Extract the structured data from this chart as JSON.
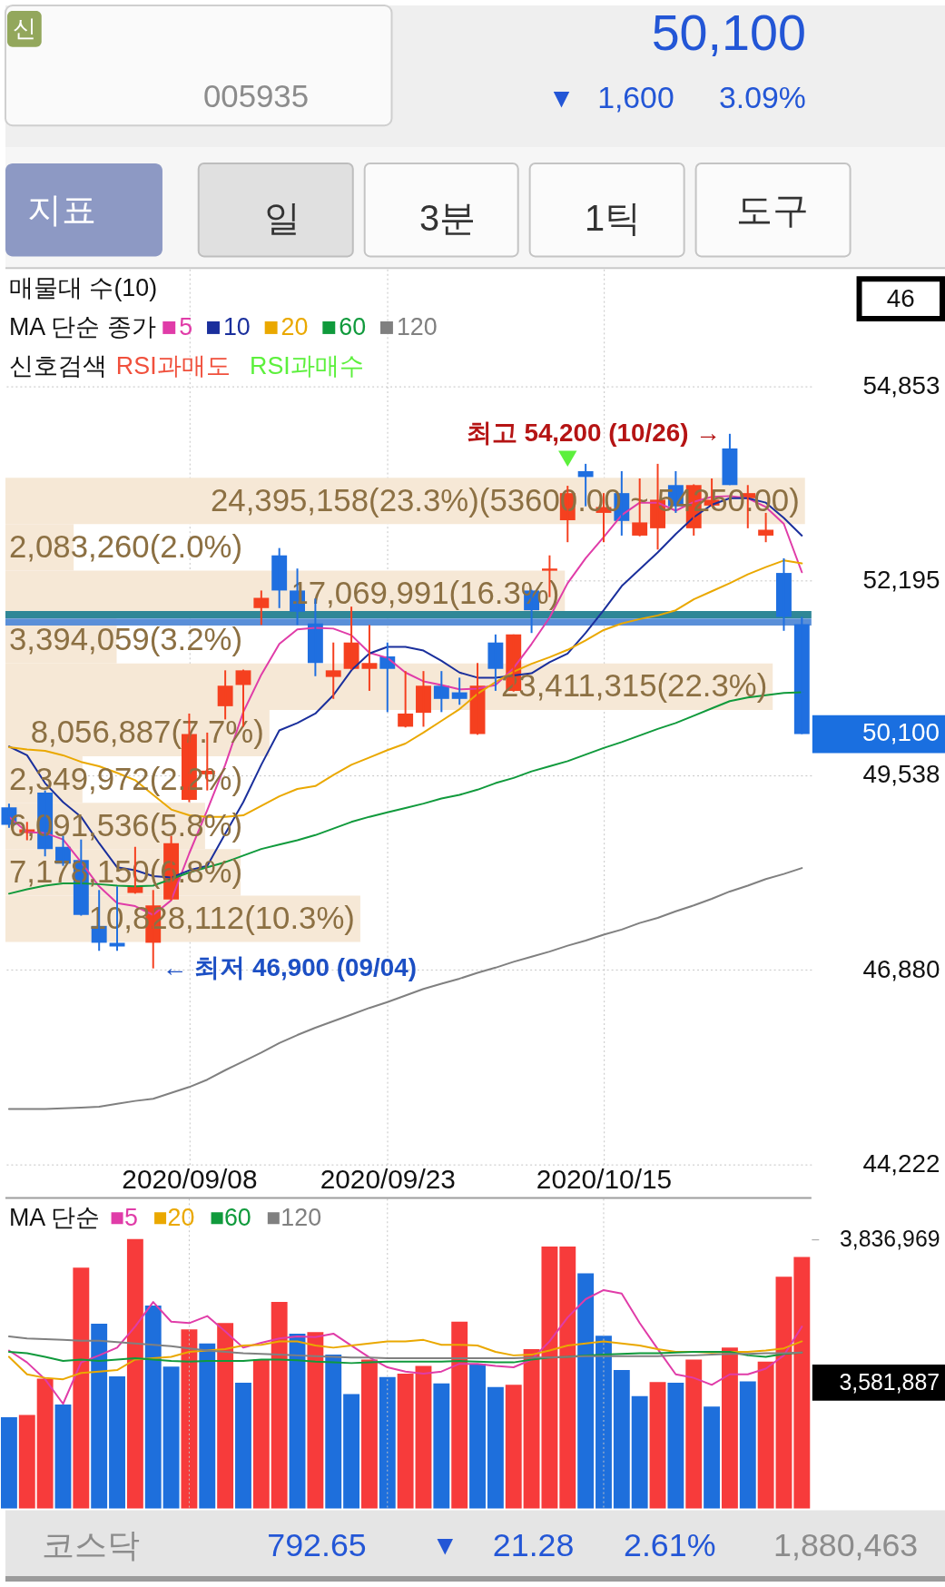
{
  "chart_data": [
    {
      "type": "other",
      "annotations": [
        "신",
        "005935",
        "50,100",
        "▼",
        "1,600",
        "3.09%",
        "지표",
        "일",
        "3분",
        "1틱",
        "도구"
      ]
    },
    {
      "type": "candlestick",
      "grid": true,
      "legend": "top left",
      "legend_title": "MA 단순 종가",
      "ylim": [
        44222,
        56450
      ],
      "yticks": [
        {
          "value": 44222,
          "label": "44,222"
        },
        {
          "value": 46880,
          "label": "46,880"
        },
        {
          "value": 49538,
          "label": "49,538"
        },
        {
          "value": 52195,
          "label": "52,195"
        },
        {
          "value": 54853,
          "label": "54,853"
        }
      ],
      "categories": [
        null,
        null,
        null,
        null,
        null,
        null,
        null,
        null,
        null,
        null,
        "2020/09/08",
        null,
        null,
        null,
        null,
        null,
        null,
        null,
        null,
        null,
        null,
        "2020/09/23",
        null,
        null,
        null,
        null,
        null,
        null,
        null,
        null,
        null,
        null,
        null,
        "2020/10/15",
        null,
        null,
        null,
        null,
        null,
        null,
        null,
        null,
        null,
        null,
        null
      ],
      "ohlc": [
        [
          49100,
          49150,
          48820,
          48860
        ],
        [
          48750,
          48900,
          48650,
          48800
        ],
        [
          49300,
          49330,
          48430,
          48530
        ],
        [
          48560,
          48710,
          48300,
          48330
        ],
        [
          48380,
          48660,
          47620,
          47630
        ],
        [
          47480,
          47970,
          47140,
          47250
        ],
        [
          47250,
          48020,
          47140,
          47200
        ],
        [
          47930,
          48560,
          47920,
          48020
        ],
        [
          47250,
          47970,
          46900,
          47760
        ],
        [
          47840,
          48710,
          47830,
          48610
        ],
        [
          49200,
          50380,
          49170,
          50100
        ],
        [
          49550,
          50120,
          49330,
          49600
        ],
        [
          50480,
          50970,
          50300,
          50760
        ],
        [
          50770,
          50980,
          50200,
          50970
        ],
        [
          51820,
          52060,
          51590,
          51960
        ],
        [
          52540,
          52640,
          51820,
          52060
        ],
        [
          52060,
          52360,
          51590,
          51770
        ],
        [
          51610,
          51950,
          50890,
          51070
        ],
        [
          50880,
          51350,
          50580,
          50970
        ],
        [
          50990,
          51840,
          50980,
          51350
        ],
        [
          50990,
          51590,
          50690,
          51070
        ],
        [
          51160,
          51350,
          50400,
          50990
        ],
        [
          50200,
          50960,
          50190,
          50380
        ],
        [
          50390,
          50960,
          50200,
          50760
        ],
        [
          50760,
          50960,
          50400,
          50580
        ],
        [
          50670,
          50870,
          50500,
          50580
        ],
        [
          50100,
          51070,
          50090,
          50760
        ],
        [
          51350,
          51460,
          50690,
          50990
        ],
        [
          50690,
          51460,
          50680,
          51460
        ],
        [
          52060,
          52070,
          51480,
          51790
        ],
        [
          52330,
          52540,
          51970,
          52360
        ],
        [
          53020,
          53490,
          52720,
          53390
        ],
        [
          53690,
          53790,
          53210,
          53610
        ],
        [
          53120,
          53390,
          52720,
          53200
        ],
        [
          53390,
          53690,
          52810,
          53010
        ],
        [
          52810,
          53590,
          52800,
          52990
        ],
        [
          52910,
          53790,
          52620,
          53300
        ],
        [
          53500,
          53690,
          53120,
          53210
        ],
        [
          52910,
          53510,
          52810,
          53500
        ],
        [
          53220,
          53590,
          53210,
          53300
        ],
        [
          54000,
          54200,
          53500,
          53500
        ],
        [
          53320,
          53500,
          52910,
          53390
        ],
        [
          52810,
          53120,
          52720,
          52890
        ],
        [
          52300,
          52500,
          51510,
          51700
        ],
        [
          51600,
          51700,
          50100,
          50100
        ]
      ],
      "colors": [
        "#1f6fe0",
        "#f5401f",
        "#1f6fe0",
        "#1f6fe0",
        "#1f6fe0",
        "#1f6fe0",
        "#1f6fe0",
        "#f5401f",
        "#f5401f",
        "#f5401f",
        "#f5401f",
        "#f5401f",
        "#f5401f",
        "#f5401f",
        "#f5401f",
        "#1f6fe0",
        "#1f6fe0",
        "#1f6fe0",
        "#f5401f",
        "#f5401f",
        "#f5401f",
        "#1f6fe0",
        "#f5401f",
        "#f5401f",
        "#1f6fe0",
        "#1f6fe0",
        "#f5401f",
        "#1f6fe0",
        "#f5401f",
        "#1f6fe0",
        "#f5401f",
        "#f5401f",
        "#1f6fe0",
        "#f5401f",
        "#1f6fe0",
        "#f5401f",
        "#f5401f",
        "#1f6fe0",
        "#f5401f",
        "#f5401f",
        "#1f6fe0",
        "#f5401f",
        "#f5401f",
        "#1f6fe0",
        "#1f6fe0"
      ],
      "series": [
        {
          "name": "5",
          "type": "line",
          "color": "#e03ca8",
          "values": [
            48970,
            48760,
            48750,
            48660,
            48350,
            48020,
            47790,
            47750,
            47630,
            47830,
            48470,
            49060,
            49680,
            50400,
            50910,
            51330,
            51530,
            51550,
            51540,
            51450,
            51210,
            51140,
            50940,
            50820,
            50770,
            50710,
            50720,
            50770,
            51000,
            51330,
            51690,
            52160,
            52500,
            52790,
            53090,
            53260,
            53260,
            53150,
            53270,
            53340,
            53350,
            53320,
            53200,
            52970,
            52310
          ]
        },
        {
          "name": "10",
          "type": "line",
          "color": "#1a2f9c",
          "values": [
            49930,
            49810,
            49430,
            49170,
            48970,
            48610,
            48280,
            48240,
            48160,
            48140,
            48240,
            48300,
            48740,
            49170,
            49680,
            50150,
            50250,
            50380,
            50630,
            50970,
            51200,
            51290,
            51290,
            51240,
            51100,
            50940,
            50870,
            50870,
            50900,
            50930,
            51080,
            51200,
            51480,
            51790,
            52120,
            52350,
            52580,
            52830,
            53060,
            53230,
            53320,
            53320,
            53260,
            53050,
            52810
          ]
        },
        {
          "name": "20",
          "type": "line",
          "color": "#eaa800",
          "values": [
            49920,
            49890,
            49870,
            49810,
            49720,
            49660,
            49570,
            49470,
            49270,
            49070,
            48990,
            48970,
            48970,
            48990,
            49120,
            49250,
            49350,
            49390,
            49540,
            49680,
            49780,
            49880,
            49970,
            50120,
            50280,
            50440,
            50650,
            50810,
            50950,
            51060,
            51150,
            51250,
            51380,
            51520,
            51610,
            51670,
            51720,
            51790,
            51940,
            52050,
            52160,
            52280,
            52380,
            52470,
            52430
          ]
        },
        {
          "name": "60",
          "type": "line",
          "color": "#109a3c",
          "values": [
            47920,
            47980,
            48030,
            48060,
            48060,
            48050,
            48030,
            48020,
            48030,
            48120,
            48210,
            48280,
            48350,
            48440,
            48530,
            48590,
            48650,
            48720,
            48810,
            48900,
            48970,
            49030,
            49090,
            49150,
            49220,
            49270,
            49340,
            49430,
            49500,
            49590,
            49660,
            49730,
            49820,
            49910,
            49990,
            50080,
            50170,
            50250,
            50350,
            50450,
            50550,
            50600,
            50630,
            50660,
            50670
          ]
        },
        {
          "name": "120",
          "type": "line",
          "color": "#808080",
          "values": [
            44980,
            44980,
            44980,
            44990,
            45000,
            45010,
            45050,
            45090,
            45120,
            45200,
            45280,
            45380,
            45510,
            45630,
            45750,
            45880,
            45990,
            46090,
            46180,
            46270,
            46360,
            46440,
            46530,
            46620,
            46690,
            46760,
            46840,
            46910,
            46990,
            47060,
            47130,
            47210,
            47280,
            47360,
            47430,
            47520,
            47590,
            47680,
            47760,
            47850,
            47950,
            48030,
            48120,
            48190,
            48270
          ]
        },
        {
          "name": "RSI과매도",
          "type": "scatter",
          "marker": "triangle",
          "color": "#f0503c",
          "values": [
            null,
            null,
            null,
            null,
            null,
            null,
            null,
            null,
            null,
            null,
            null,
            null,
            null,
            null,
            null,
            null,
            null,
            null,
            null,
            null,
            null,
            null,
            null,
            null,
            null,
            null,
            null,
            null,
            null,
            null,
            null,
            null,
            null,
            null,
            null,
            null,
            null,
            null,
            null,
            null,
            null,
            null,
            null,
            null,
            null
          ]
        },
        {
          "name": "RSI과매수",
          "type": "scatter",
          "marker": "triangle",
          "color": "#5cf03c",
          "values": [
            null,
            null,
            null,
            null,
            null,
            null,
            null,
            null,
            null,
            null,
            null,
            null,
            null,
            null,
            null,
            null,
            null,
            null,
            null,
            null,
            null,
            null,
            null,
            null,
            null,
            null,
            null,
            null,
            null,
            null,
            null,
            53860,
            null,
            null,
            null,
            null,
            null,
            null,
            null,
            null,
            null,
            null,
            null,
            null,
            null
          ]
        }
      ],
      "bands": [
        {
          "axis": "y",
          "from": 47260,
          "to": 47894,
          "label": "10,828,112(10.3%)",
          "color": "#f6e8d6"
        },
        {
          "axis": "y",
          "from": 47894,
          "to": 48528,
          "label": "7,178,150(6.8%)",
          "color": "#f6e8d6"
        },
        {
          "axis": "y",
          "from": 48528,
          "to": 49162,
          "label": "6,091,536(5.8%)",
          "color": "#f6e8d6"
        },
        {
          "axis": "y",
          "from": 49162,
          "to": 49796,
          "label": "2,349,972(2.2%)",
          "color": "#f6e8d6"
        },
        {
          "axis": "y",
          "from": 49796,
          "to": 50430,
          "label": "8,056,887(7.7%)",
          "color": "#f6e8d6"
        },
        {
          "axis": "y",
          "from": 50430,
          "to": 51064,
          "label": "23,411,315(22.3%)",
          "color": "#f6e8d6"
        },
        {
          "axis": "y",
          "from": 51064,
          "to": 51698,
          "label": "3,394,059(3.2%)",
          "color": "#f6e8d6"
        },
        {
          "axis": "y",
          "from": 51698,
          "to": 52332,
          "label": "17,069,991(16.3%)",
          "color": "#f6e8d6"
        },
        {
          "axis": "y",
          "from": 52332,
          "to": 52966,
          "label": "2,083,260(2.0%)",
          "color": "#f6e8d6"
        },
        {
          "axis": "y",
          "from": 52966,
          "to": 53600,
          "label": "24,395,158(23.3%)(53600.00 ~ 54250.00)",
          "color": "#f6e8d6"
        }
      ],
      "ref_lines": [
        {
          "axis": "y",
          "value": 51730,
          "color": "#2f8797"
        },
        {
          "axis": "y",
          "value": 51630,
          "color": "#5a8fd8"
        }
      ],
      "annotations": [
        "최고 54,200 (10/26) →",
        "← 최저 46,900 (09/04)",
        "50,100",
        "46",
        "신호검색",
        "매물대 수(10)"
      ]
    },
    {
      "type": "bar",
      "grid": "x",
      "legend": "top left",
      "legend_title": "MA 단순",
      "tick_labels": "y",
      "ylim": [
        0,
        4410000
      ],
      "yticks": [
        {
          "value": 3836969,
          "label": "3,836,969"
        }
      ],
      "categories": [
        null,
        null,
        null,
        null,
        null,
        null,
        null,
        null,
        null,
        null,
        "2020/09/08",
        null,
        null,
        null,
        null,
        null,
        null,
        null,
        null,
        null,
        null,
        "2020/09/23",
        null,
        null,
        null,
        null,
        null,
        null,
        null,
        null,
        null,
        null,
        null,
        "2020/10/15",
        null,
        null,
        null,
        null,
        null,
        null,
        null,
        null,
        null,
        null,
        null
      ],
      "series": [
        {
          "type": "bar",
          "values": [
            1300000,
            1330000,
            1850000,
            1480000,
            3430000,
            2630000,
            1880000,
            3836969,
            2890000,
            2020000,
            2550000,
            2350000,
            2640000,
            1790000,
            2120000,
            2940000,
            2490000,
            2510000,
            2190000,
            1630000,
            2120000,
            1870000,
            1920000,
            2030000,
            1780000,
            2660000,
            2060000,
            1730000,
            1760000,
            2270000,
            3730000,
            3730000,
            3350000,
            2460000,
            1970000,
            1600000,
            1800000,
            1790000,
            2120000,
            1450000,
            2290000,
            1810000,
            2090000,
            3300000,
            3581887
          ],
          "colors": [
            "#1e6fdc",
            "#f73b3b",
            "#f73b3b",
            "#1e6fdc",
            "#f73b3b",
            "#1e6fdc",
            "#1e6fdc",
            "#f73b3b",
            "#1e6fdc",
            "#1e6fdc",
            "#f73b3b",
            "#1e6fdc",
            "#f73b3b",
            "#1e6fdc",
            "#f73b3b",
            "#f73b3b",
            "#1e6fdc",
            "#f73b3b",
            "#1e6fdc",
            "#1e6fdc",
            "#f73b3b",
            "#1e6fdc",
            "#f73b3b",
            "#f73b3b",
            "#1e6fdc",
            "#f73b3b",
            "#1e6fdc",
            "#1e6fdc",
            "#f73b3b",
            "#f73b3b",
            "#f73b3b",
            "#f73b3b",
            "#1e6fdc",
            "#1e6fdc",
            "#1e6fdc",
            "#1e6fdc",
            "#f73b3b",
            "#1e6fdc",
            "#f73b3b",
            "#1e6fdc",
            "#f73b3b",
            "#1e6fdc",
            "#f73b3b",
            "#f73b3b",
            "#f73b3b"
          ]
        },
        {
          "name": "■5",
          "type": "line",
          "color": "#e03ca8",
          "values": [
            2250000,
            2080000,
            1840000,
            1490000,
            2080000,
            2180000,
            2290000,
            2590000,
            2940000,
            2660000,
            2640000,
            2740000,
            2520000,
            2290000,
            2360000,
            2420000,
            2450000,
            2440000,
            2490000,
            2320000,
            2150000,
            2010000,
            1950000,
            1920000,
            1950000,
            2060000,
            2060000,
            2030000,
            2010000,
            2120000,
            2380000,
            2720000,
            2980000,
            3110000,
            3060000,
            2640000,
            2270000,
            1910000,
            1860000,
            1760000,
            1910000,
            1910000,
            1990000,
            2180000,
            2590000
          ]
        },
        {
          "name": "■20",
          "type": "line",
          "color": "#eaa800",
          "values": [
            2160000,
            1910000,
            1860000,
            1840000,
            1930000,
            1950000,
            1970000,
            2120000,
            2140000,
            2160000,
            2230000,
            2250000,
            2270000,
            2320000,
            2330000,
            2380000,
            2380000,
            2320000,
            2290000,
            2320000,
            2350000,
            2380000,
            2380000,
            2400000,
            2330000,
            2330000,
            2320000,
            2230000,
            2180000,
            2190000,
            2250000,
            2320000,
            2350000,
            2380000,
            2350000,
            2320000,
            2270000,
            2230000,
            2230000,
            2220000,
            2230000,
            2230000,
            2250000,
            2280000,
            2380000
          ]
        },
        {
          "name": "■60",
          "type": "line",
          "color": "#109a3c",
          "values": [
            2230000,
            2210000,
            2160000,
            2100000,
            2120000,
            2100000,
            2120000,
            2140000,
            2120000,
            2100000,
            2090000,
            2100000,
            2100000,
            2100000,
            2120000,
            2120000,
            2110000,
            2090000,
            2080000,
            2070000,
            2080000,
            2090000,
            2090000,
            2090000,
            2090000,
            2100000,
            2090000,
            2080000,
            2080000,
            2120000,
            2150000,
            2160000,
            2180000,
            2190000,
            2200000,
            2210000,
            2210000,
            2220000,
            2230000,
            2230000,
            2230000,
            2180000,
            2160000,
            2200000,
            2220000
          ]
        },
        {
          "name": "■120",
          "type": "line",
          "color": "#808080",
          "values": [
            2450000,
            2420000,
            2410000,
            2400000,
            2390000,
            2390000,
            2370000,
            2350000,
            2330000,
            2310000,
            2280000,
            2250000,
            2230000,
            2210000,
            2200000,
            2190000,
            2180000,
            2170000,
            2160000,
            2150000,
            2150000,
            2140000,
            2140000,
            2140000,
            2140000,
            2140000,
            2140000,
            2140000,
            2140000,
            2150000,
            2150000,
            2160000,
            2170000,
            2170000,
            2170000,
            2170000,
            2170000,
            2180000,
            2180000,
            2190000,
            2200000,
            2200000,
            2210000,
            2210000,
            2220000
          ]
        }
      ],
      "annotations": [
        "3,581,887"
      ]
    },
    {
      "type": "other",
      "annotations": [
        "코스닥",
        "792.65",
        "▼",
        "21.28",
        "2.61%",
        "1,880,463"
      ]
    }
  ]
}
